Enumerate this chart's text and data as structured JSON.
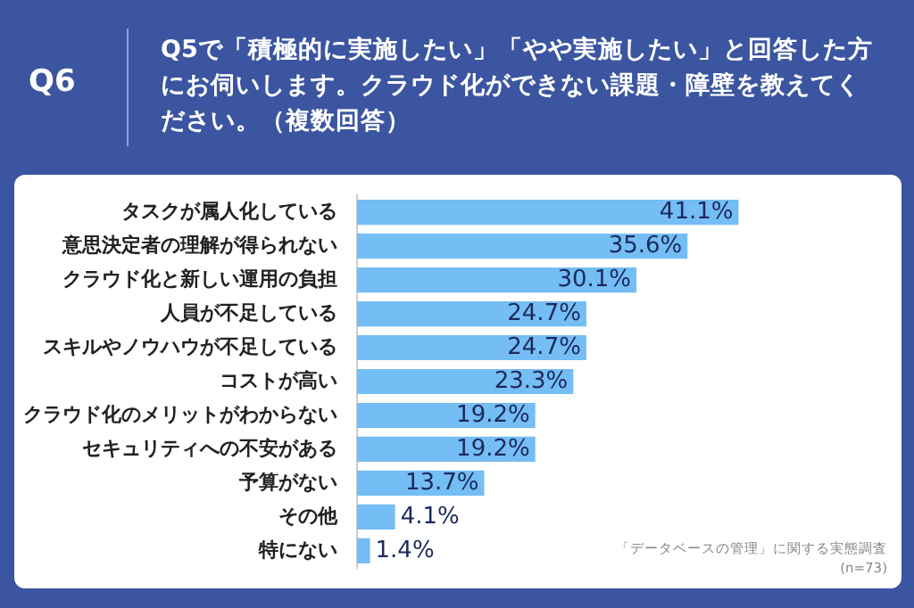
{
  "chart_data": {
    "type": "bar",
    "orientation": "horizontal",
    "title": "Q5で「積極的に実施したい」「やや実施したい」と回答した方にお伺いします。クラウド化ができない課題・障壁を教えてください。（複数回答）",
    "annotations": [
      "Q6",
      "「データベースの管理」に関する実態調査",
      "(n=73)"
    ],
    "categories": [
      "タスクが属人化している",
      "意思決定者の理解が得られない",
      "クラウド化と新しい運用の負担",
      "人員が不足している",
      "スキルやノウハウが不足している",
      "コストが高い",
      "クラウド化のメリットがわからない",
      "セキュリティへの不安がある",
      "予算がない",
      "その他",
      "特にない"
    ],
    "values": [
      41.1,
      35.6,
      30.1,
      24.7,
      24.7,
      23.3,
      19.2,
      19.2,
      13.7,
      4.1,
      1.4
    ],
    "value_labels": [
      "41.1%",
      "35.6%",
      "30.1%",
      "24.7%",
      "24.7%",
      "23.3%",
      "19.2%",
      "19.2%",
      "13.7%",
      "4.1%",
      "1.4%"
    ],
    "color": "#74bdf5"
  }
}
